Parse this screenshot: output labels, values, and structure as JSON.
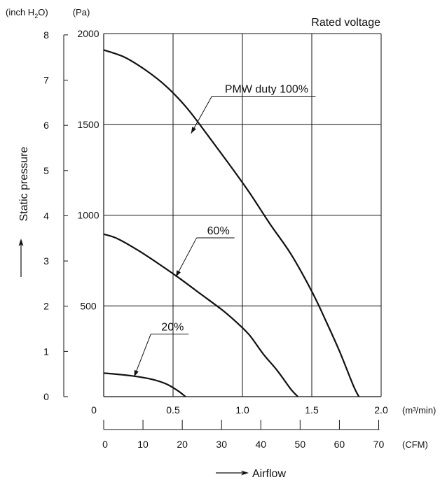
{
  "chart_data": {
    "type": "line",
    "title": "Rated voltage",
    "ylabel": "Static pressure",
    "xlabel": "Airflow",
    "y_pa_unit": "(Pa)",
    "y_inch_unit_main": "(inch H",
    "y_inch_unit_sub": "2",
    "y_inch_unit_end": "O)",
    "x_m3_unit": "(m³/min)",
    "x_cfm_unit": "(CFM)",
    "ylim": [
      0,
      2000
    ],
    "xlim": [
      0,
      2.0
    ],
    "grid": true,
    "pa_ticks": [
      {
        "value": 500,
        "label": "500"
      },
      {
        "value": 1000,
        "label": "1000"
      },
      {
        "value": 1500,
        "label": "1500"
      },
      {
        "value": 2000,
        "label": "2000"
      }
    ],
    "inch_ticks": [
      {
        "value": 0,
        "label": "0"
      },
      {
        "value": 1,
        "label": "1"
      },
      {
        "value": 2,
        "label": "2"
      },
      {
        "value": 3,
        "label": "3"
      },
      {
        "value": 4,
        "label": "4"
      },
      {
        "value": 5,
        "label": "5"
      },
      {
        "value": 6,
        "label": "6"
      },
      {
        "value": 7,
        "label": "7"
      },
      {
        "value": 8,
        "label": "8"
      }
    ],
    "m3_ticks": [
      {
        "value": 0,
        "label": "0"
      },
      {
        "value": 0.5,
        "label": "0.5"
      },
      {
        "value": 1.0,
        "label": "1.0"
      },
      {
        "value": 1.5,
        "label": "1.5"
      },
      {
        "value": 2.0,
        "label": "2.0"
      }
    ],
    "cfm_ticks": [
      {
        "value": 0,
        "label": "0"
      },
      {
        "value": 10,
        "label": "10"
      },
      {
        "value": 20,
        "label": "20"
      },
      {
        "value": 30,
        "label": "30"
      },
      {
        "value": 40,
        "label": "40"
      },
      {
        "value": 50,
        "label": "50"
      },
      {
        "value": 60,
        "label": "60"
      },
      {
        "value": 70,
        "label": "70"
      }
    ],
    "series": [
      {
        "name": "PMW duty 100%",
        "x": [
          0,
          0.15,
          0.3,
          0.45,
          0.6,
          0.75,
          0.9,
          1.05,
          1.2,
          1.35,
          1.5,
          1.6,
          1.7,
          1.8,
          1.84
        ],
        "y": [
          1910,
          1870,
          1800,
          1710,
          1590,
          1440,
          1285,
          1125,
          950,
          785,
          580,
          420,
          250,
          60,
          0
        ]
      },
      {
        "name": "60%",
        "x": [
          0,
          0.1,
          0.25,
          0.4,
          0.55,
          0.7,
          0.85,
          0.95,
          1.05,
          1.15,
          1.25,
          1.35,
          1.4
        ],
        "y": [
          895,
          870,
          805,
          730,
          650,
          565,
          480,
          415,
          340,
          235,
          145,
          40,
          0
        ]
      },
      {
        "name": "20%",
        "x": [
          0,
          0.2,
          0.35,
          0.45,
          0.53,
          0.59
        ],
        "y": [
          130,
          115,
          95,
          70,
          35,
          0
        ]
      }
    ],
    "annotations": [
      {
        "label": "PMW duty 100%",
        "x": 0.63,
        "y": 1450,
        "tx": 0.78,
        "ty": 1655
      },
      {
        "label": "60%",
        "x": 0.52,
        "y": 660,
        "tx": 0.67,
        "ty": 875
      },
      {
        "label": "20%",
        "x": 0.22,
        "y": 110,
        "tx": 0.34,
        "ty": 345
      }
    ]
  }
}
